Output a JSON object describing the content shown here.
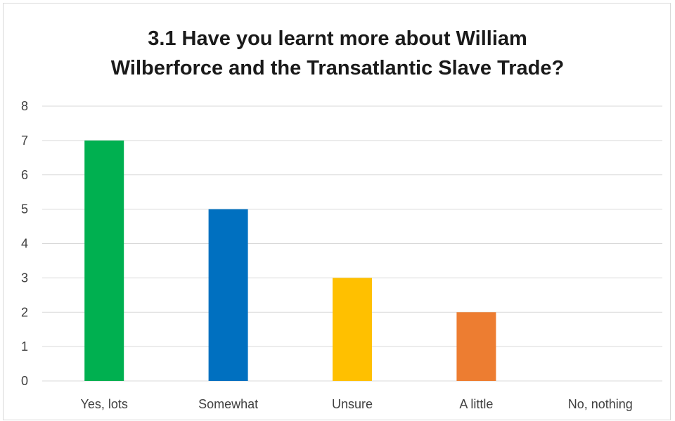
{
  "chart_data": {
    "type": "bar",
    "title_lines": [
      "3.1 Have you learnt more about William",
      "Wilberforce and the Transatlantic Slave Trade?"
    ],
    "categories": [
      "Yes, lots",
      "Somewhat",
      "Unsure",
      "A little",
      "No, nothing"
    ],
    "values": [
      7,
      5,
      3,
      2,
      0
    ],
    "colors": [
      "#00b050",
      "#0070c0",
      "#ffc000",
      "#ed7d31",
      "#a5a5a5"
    ],
    "ylim": [
      0,
      8
    ],
    "yticks": [
      "0",
      "1",
      "2",
      "3",
      "4",
      "5",
      "6",
      "7",
      "8"
    ],
    "grid": true,
    "legend": "none",
    "gridline_color": "#d9d9d9"
  }
}
